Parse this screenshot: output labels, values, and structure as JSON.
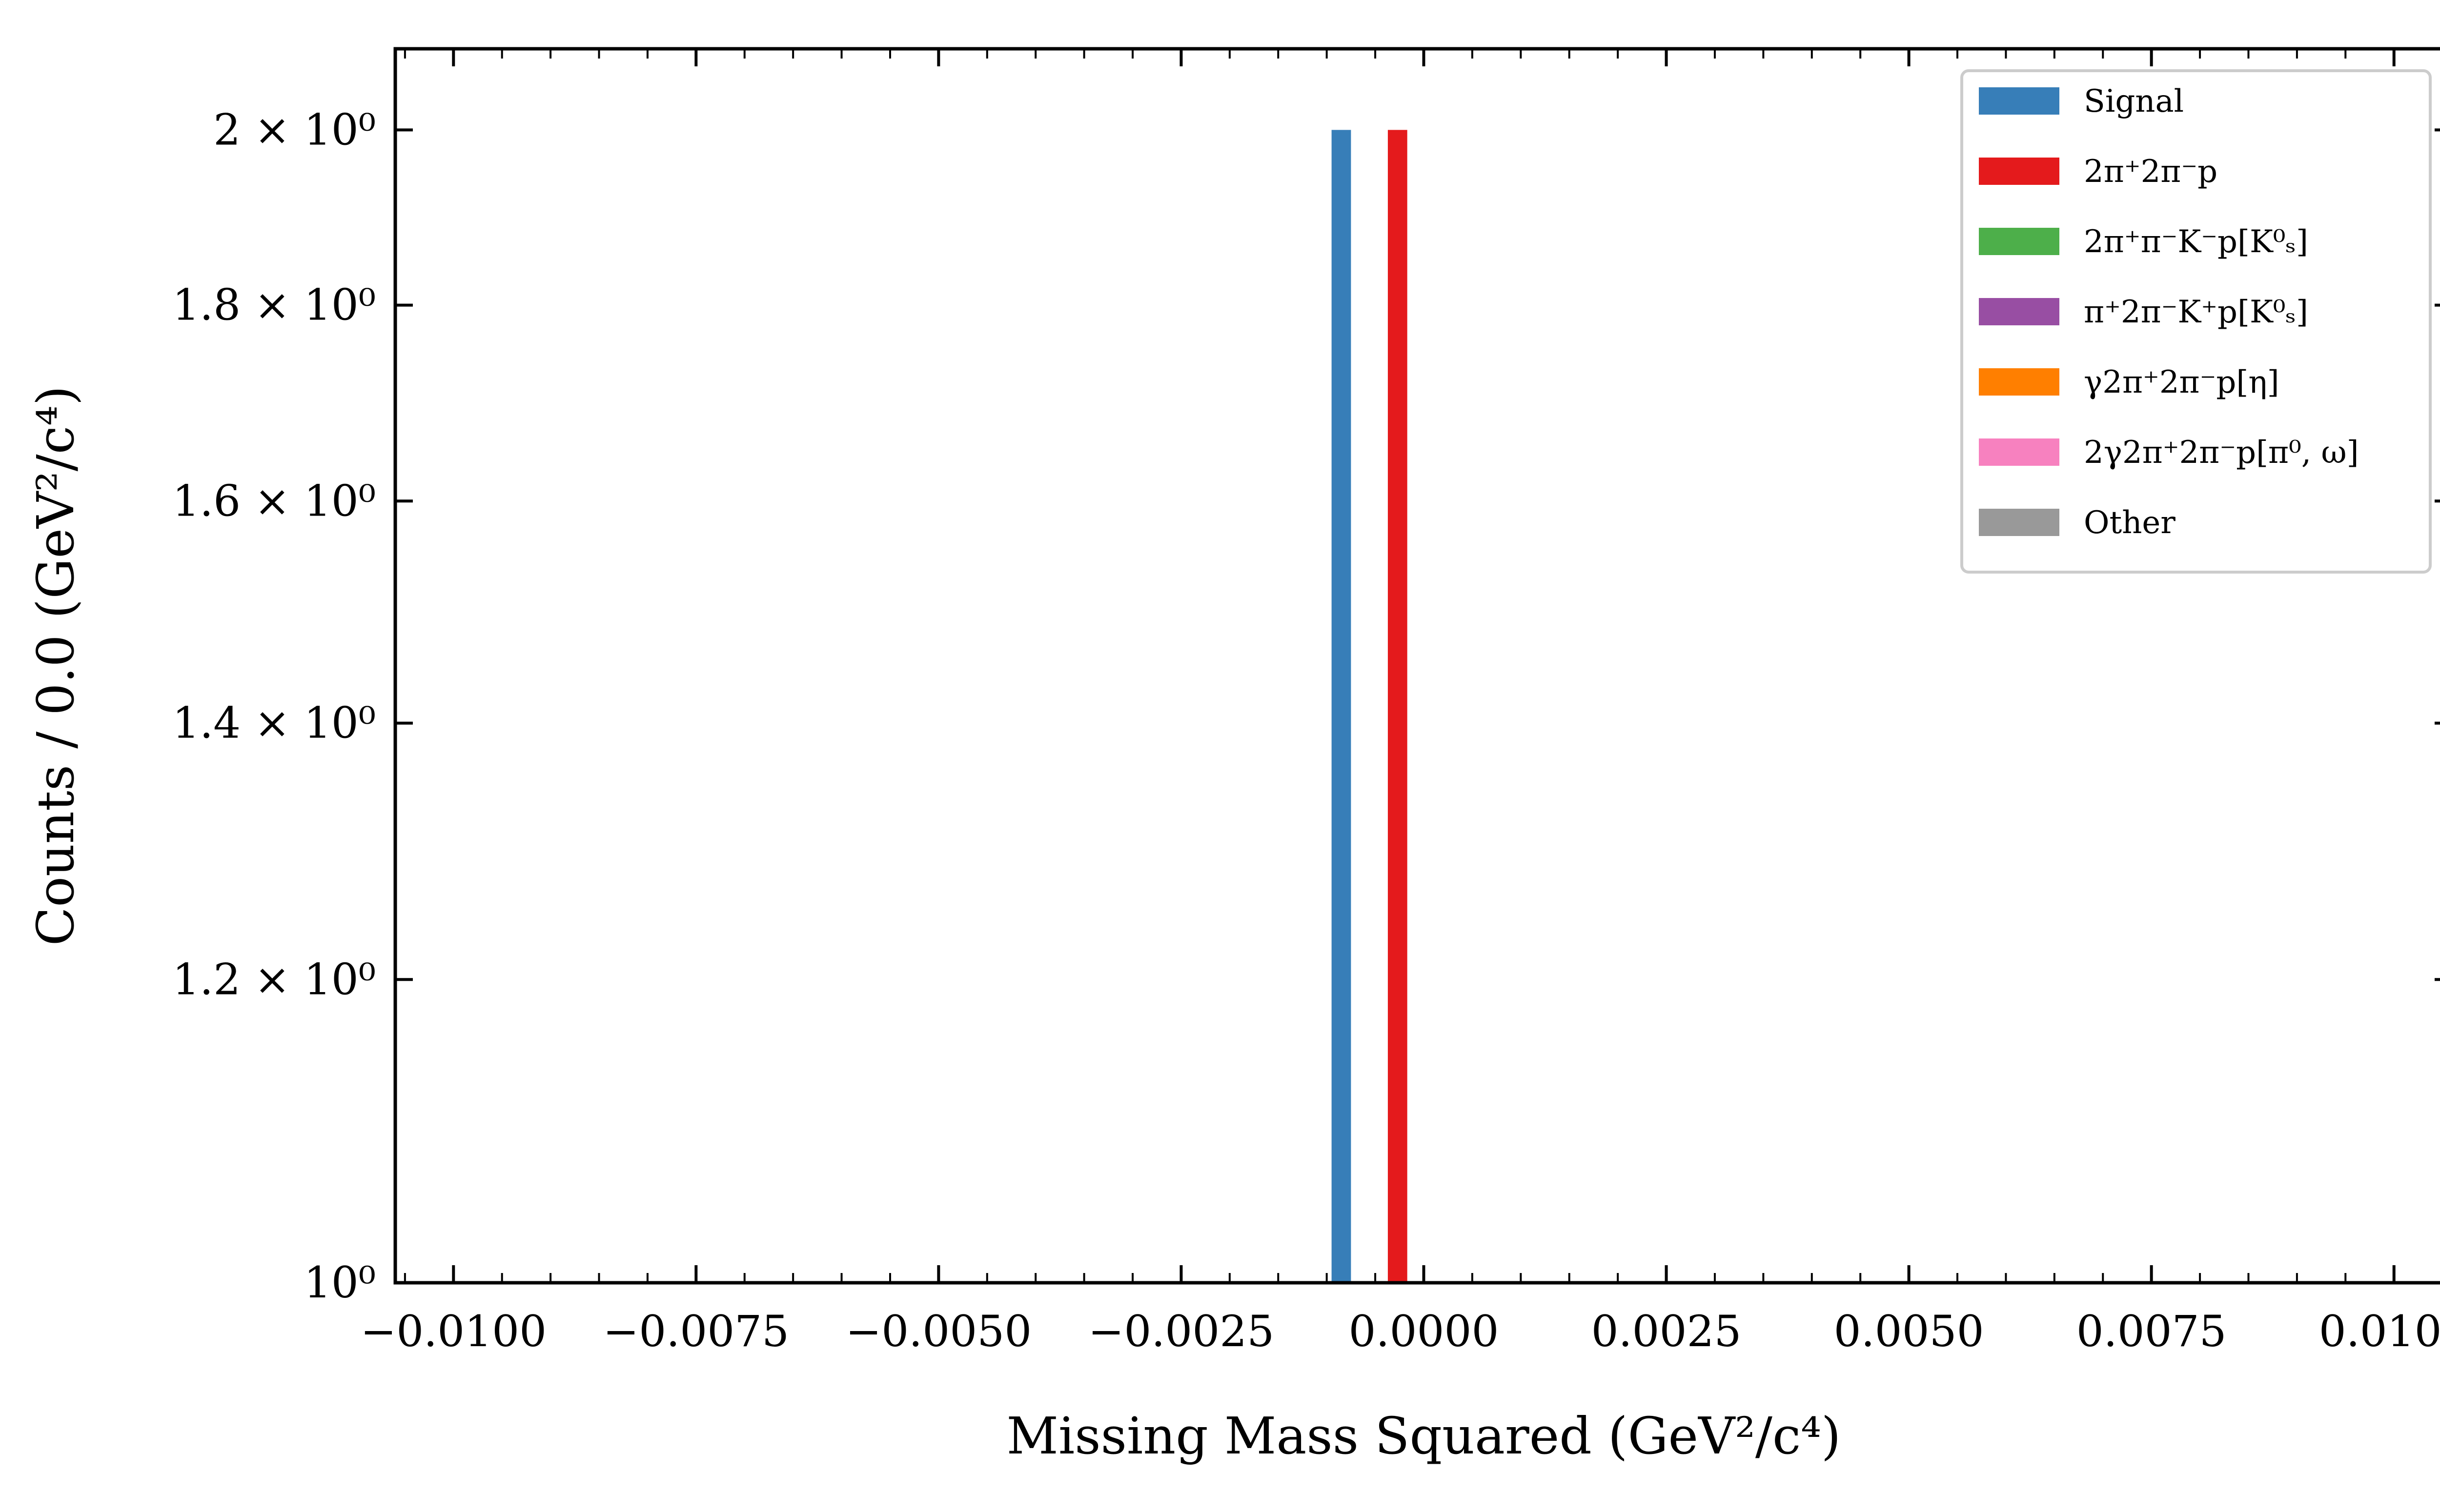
{
  "chart_data": {
    "type": "bar",
    "xlabel": "Missing Mass Squared (GeV²/c⁴)",
    "ylabel": "Counts / 0.0 (GeV²/c⁴)",
    "xlim": [
      -0.0106,
      0.0106
    ],
    "ylim": [
      1.0,
      2.1
    ],
    "yscale": "log",
    "grid": false,
    "legend_position": "top-right",
    "xticks": [
      {
        "value": -0.01,
        "label": "−0.0100"
      },
      {
        "value": -0.0075,
        "label": "−0.0075"
      },
      {
        "value": -0.005,
        "label": "−0.0050"
      },
      {
        "value": -0.0025,
        "label": "−0.0025"
      },
      {
        "value": 0.0,
        "label": "0.0000"
      },
      {
        "value": 0.0025,
        "label": "0.0025"
      },
      {
        "value": 0.005,
        "label": "0.0050"
      },
      {
        "value": 0.0075,
        "label": "0.0075"
      },
      {
        "value": 0.01,
        "label": "0.0100"
      }
    ],
    "yticks": [
      {
        "value": 1.0,
        "label": "10⁰"
      },
      {
        "value": 1.2,
        "label": "1.2 × 10⁰"
      },
      {
        "value": 1.4,
        "label": "1.4 × 10⁰"
      },
      {
        "value": 1.6,
        "label": "1.6 × 10⁰"
      },
      {
        "value": 1.8,
        "label": "1.8 × 10⁰"
      },
      {
        "value": 2.0,
        "label": "2 × 10⁰"
      }
    ],
    "series": [
      {
        "name": "Signal",
        "color": "#377eb8",
        "bins": [
          {
            "x0": -0.00095,
            "x1": -0.00075,
            "count": 2
          }
        ]
      },
      {
        "name": "2π⁺2π⁻p",
        "color": "#e41a1c",
        "bins": [
          {
            "x0": -0.00037,
            "x1": -0.00017,
            "count": 2
          }
        ]
      },
      {
        "name": "2π⁺π⁻K⁻p[K⁰ₛ]",
        "color": "#4daf4a",
        "bins": []
      },
      {
        "name": "π⁺2π⁻K⁺p[K⁰ₛ]",
        "color": "#984ea3",
        "bins": []
      },
      {
        "name": "γ2π⁺2π⁻p[η]",
        "color": "#ff7f00",
        "bins": []
      },
      {
        "name": "2γ2π⁺2π⁻p[π⁰, ω]",
        "color": "#f781bf",
        "bins": []
      },
      {
        "name": "Other",
        "color": "#999999",
        "bins": []
      }
    ]
  }
}
